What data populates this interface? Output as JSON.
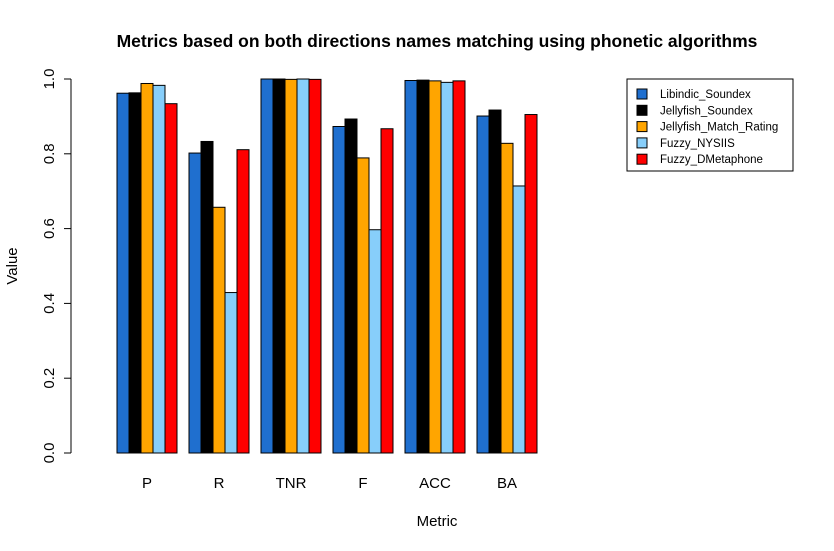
{
  "chart_data": {
    "type": "bar",
    "title": "Metrics based on both directions names matching using phonetic algorithms",
    "xlabel": "Metric",
    "ylabel": "Value",
    "ylim": [
      0,
      1
    ],
    "yticks": [
      "0.0",
      "0.2",
      "0.4",
      "0.6",
      "0.8",
      "1.0"
    ],
    "grid": false,
    "legend_position": "top-right",
    "categories": [
      "P",
      "R",
      "TNR",
      "F",
      "ACC",
      "BA"
    ],
    "series": [
      {
        "name": "Libindic_Soundex",
        "color": "#1f6fcf",
        "values": [
          0.962,
          0.802,
          1.0,
          0.873,
          0.996,
          0.901
        ]
      },
      {
        "name": "Jellyfish_Soundex",
        "color": "#000000",
        "values": [
          0.963,
          0.833,
          1.0,
          0.893,
          0.997,
          0.917
        ]
      },
      {
        "name": "Jellyfish_Match_Rating",
        "color": "#ffa500",
        "values": [
          0.988,
          0.657,
          0.999,
          0.789,
          0.995,
          0.828
        ]
      },
      {
        "name": "Fuzzy_NYSIIS",
        "color": "#87cefa",
        "values": [
          0.983,
          0.429,
          1.0,
          0.597,
          0.991,
          0.714
        ]
      },
      {
        "name": "Fuzzy_DMetaphone",
        "color": "#ff0000",
        "values": [
          0.934,
          0.811,
          0.999,
          0.867,
          0.995,
          0.905
        ]
      }
    ]
  }
}
